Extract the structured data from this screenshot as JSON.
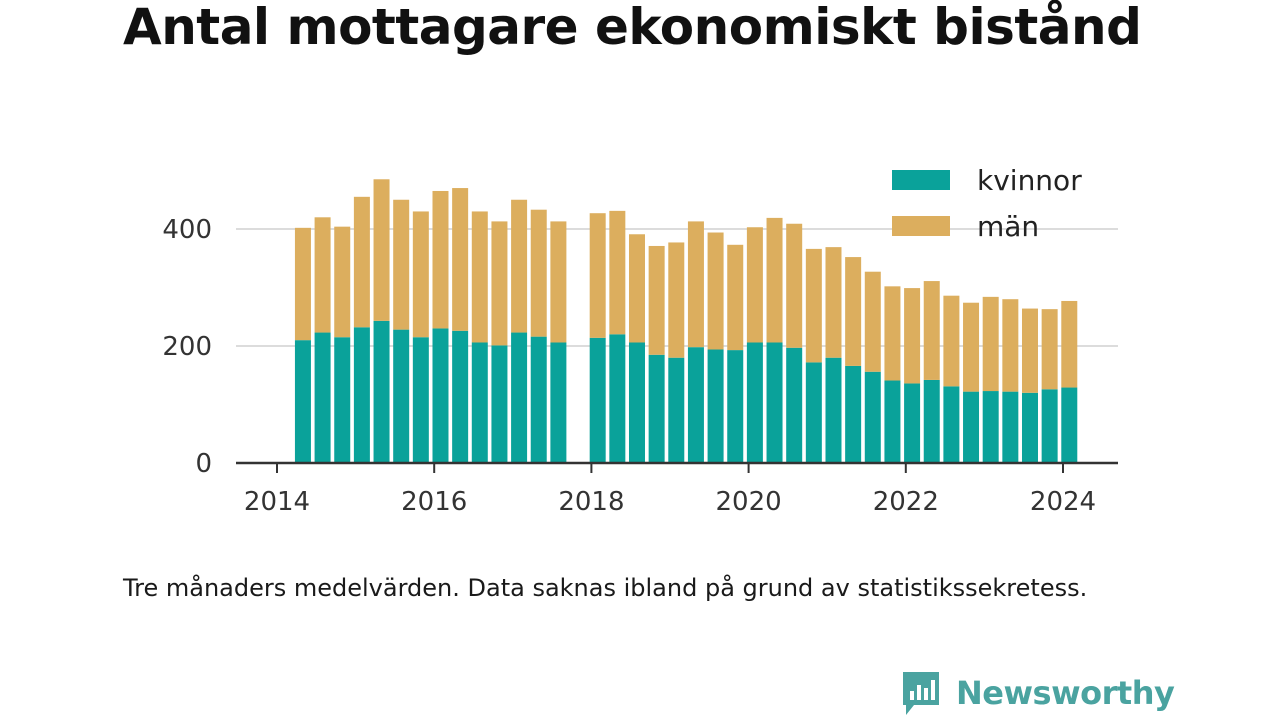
{
  "title": "Antal mottagare ekonomiskt bistånd",
  "caption": "Tre månaders medelvärden. Data saknas ibland på grund av statistikssekretess.",
  "brand": {
    "name": "Newsworthy",
    "logo_icon": "bar-chart-speech-bubble-icon"
  },
  "colors": {
    "kvinnor": "#0aa29a",
    "man": "#dcae5e",
    "brand": "#4aa3a0"
  },
  "chart_data": {
    "type": "bar",
    "stacked": true,
    "title": "",
    "xlabel": "",
    "ylabel": "",
    "ylim": [
      0,
      500
    ],
    "yticks": [
      0,
      200,
      400
    ],
    "xlim": [
      2014,
      2024.35
    ],
    "xticks": [
      2014,
      2016,
      2018,
      2020,
      2022,
      2024
    ],
    "xtick_labels": [
      "2014",
      "2016",
      "2018",
      "2020",
      "2022",
      "2024"
    ],
    "grid": true,
    "legend": {
      "position": "top-right",
      "entries": [
        "kvinnor",
        "män"
      ]
    },
    "x": [
      2014.33,
      2014.58,
      2014.83,
      2015.08,
      2015.33,
      2015.58,
      2015.83,
      2016.08,
      2016.33,
      2016.58,
      2016.83,
      2017.08,
      2017.33,
      2017.58,
      2018.08,
      2018.33,
      2018.58,
      2018.83,
      2019.08,
      2019.33,
      2019.58,
      2019.83,
      2020.08,
      2020.33,
      2020.58,
      2020.83,
      2021.08,
      2021.33,
      2021.58,
      2021.83,
      2022.08,
      2022.33,
      2022.58,
      2022.83,
      2023.08,
      2023.33,
      2023.58,
      2023.83,
      2024.08
    ],
    "series": [
      {
        "name": "kvinnor",
        "values": [
          210,
          223,
          215,
          232,
          243,
          228,
          215,
          230,
          226,
          206,
          201,
          223,
          216,
          206,
          214,
          220,
          206,
          185,
          180,
          198,
          194,
          193,
          206,
          206,
          197,
          172,
          180,
          166,
          156,
          141,
          136,
          142,
          131,
          122,
          123,
          122,
          120,
          126,
          129
        ]
      },
      {
        "name": "män",
        "values": [
          192,
          197,
          189,
          223,
          242,
          222,
          215,
          235,
          244,
          224,
          212,
          227,
          217,
          207,
          213,
          211,
          185,
          186,
          197,
          215,
          200,
          180,
          197,
          213,
          212,
          194,
          189,
          186,
          171,
          161,
          163,
          169,
          155,
          152,
          161,
          158,
          144,
          137,
          148
        ]
      }
    ]
  }
}
